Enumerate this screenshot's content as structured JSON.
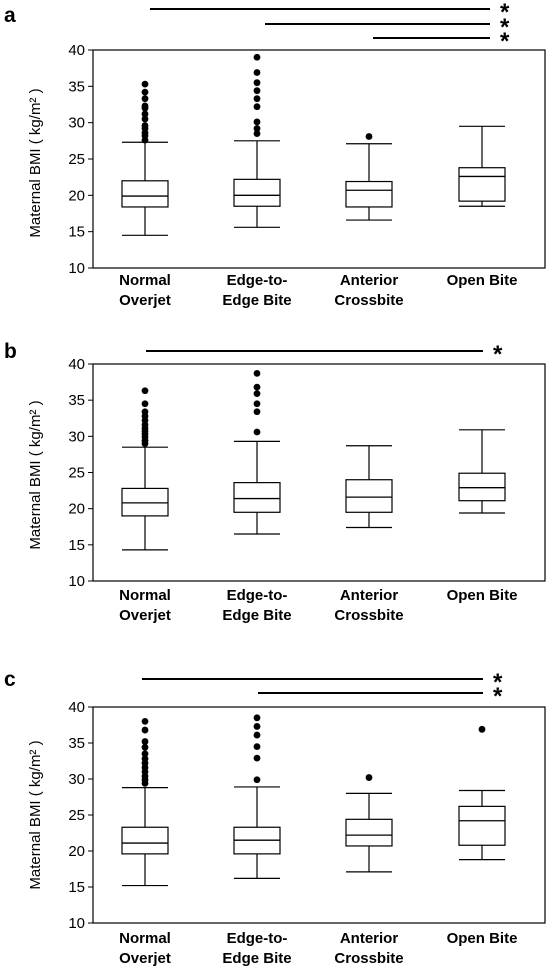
{
  "chart_data": [
    {
      "type": "box",
      "panel_label": "a",
      "ylabel": "Maternal BMI ( kg/m² )",
      "ylim": [
        10,
        40
      ],
      "yticks": [
        10,
        15,
        20,
        25,
        30,
        35,
        40
      ],
      "categories": [
        [
          "Normal",
          "Overjet"
        ],
        [
          "Edge-to-",
          "Edge Bite"
        ],
        [
          "Anterior",
          "Crossbite"
        ],
        [
          "Open Bite"
        ]
      ],
      "boxes": [
        {
          "whisker_low": 14.5,
          "q1": 18.4,
          "median": 19.9,
          "q3": 22.0,
          "whisker_high": 27.3,
          "outliers": [
            27.6,
            28.2,
            28.6,
            29.2,
            29.6,
            30.5,
            31.2,
            32.0,
            32.3,
            33.3,
            34.2,
            35.3
          ]
        },
        {
          "whisker_low": 15.6,
          "q1": 18.5,
          "median": 20.0,
          "q3": 22.2,
          "whisker_high": 27.5,
          "outliers": [
            28.5,
            29.2,
            30.1,
            32.2,
            33.3,
            34.4,
            35.5,
            36.9,
            39.0
          ]
        },
        {
          "whisker_low": 16.6,
          "q1": 18.4,
          "median": 20.7,
          "q3": 21.9,
          "whisker_high": 27.1,
          "outliers": [
            28.1
          ]
        },
        {
          "whisker_low": 18.5,
          "q1": 19.2,
          "median": 22.6,
          "q3": 23.8,
          "whisker_high": 29.5,
          "outliers": []
        }
      ],
      "significance": [
        {
          "from": 0,
          "to": 3,
          "label": "*"
        },
        {
          "from": 1,
          "to": 3,
          "label": "*"
        },
        {
          "from": 2,
          "to": 3,
          "label": "*"
        }
      ]
    },
    {
      "type": "box",
      "panel_label": "b",
      "ylabel": "Maternal BMI ( kg/m² )",
      "ylim": [
        10,
        40
      ],
      "yticks": [
        10,
        15,
        20,
        25,
        30,
        35,
        40
      ],
      "categories": [
        [
          "Normal",
          "Overjet"
        ],
        [
          "Edge-to-",
          "Edge Bite"
        ],
        [
          "Anterior",
          "Crossbite"
        ],
        [
          "Open Bite"
        ]
      ],
      "boxes": [
        {
          "whisker_low": 14.3,
          "q1": 19.0,
          "median": 20.8,
          "q3": 22.8,
          "whisker_high": 28.5,
          "outliers": [
            29.0,
            29.4,
            29.9,
            30.3,
            30.7,
            31.1,
            31.6,
            32.2,
            32.8,
            33.4,
            34.5,
            36.3
          ]
        },
        {
          "whisker_low": 16.5,
          "q1": 19.5,
          "median": 21.4,
          "q3": 23.6,
          "whisker_high": 29.3,
          "outliers": [
            30.6,
            33.4,
            34.5,
            35.9,
            36.8,
            38.7
          ]
        },
        {
          "whisker_low": 17.4,
          "q1": 19.5,
          "median": 21.6,
          "q3": 24.0,
          "whisker_high": 28.7,
          "outliers": []
        },
        {
          "whisker_low": 19.4,
          "q1": 21.1,
          "median": 22.9,
          "q3": 24.9,
          "whisker_high": 30.9,
          "outliers": []
        }
      ],
      "significance": [
        {
          "from": 0,
          "to": 3,
          "label": "*"
        }
      ]
    },
    {
      "type": "box",
      "panel_label": "c",
      "ylabel": "Maternal BMI ( kg/m² )",
      "ylim": [
        10,
        40
      ],
      "yticks": [
        10,
        15,
        20,
        25,
        30,
        35,
        40
      ],
      "categories": [
        [
          "Normal",
          "Overjet"
        ],
        [
          "Edge-to-",
          "Edge Bite"
        ],
        [
          "Anterior",
          "Crossbite"
        ],
        [
          "Open Bite"
        ]
      ],
      "boxes": [
        {
          "whisker_low": 15.2,
          "q1": 19.6,
          "median": 21.1,
          "q3": 23.3,
          "whisker_high": 28.8,
          "outliers": [
            29.4,
            29.9,
            30.4,
            31.0,
            31.6,
            32.2,
            32.8,
            33.5,
            34.4,
            35.2,
            36.8,
            38.0
          ]
        },
        {
          "whisker_low": 16.2,
          "q1": 19.6,
          "median": 21.5,
          "q3": 23.3,
          "whisker_high": 28.9,
          "outliers": [
            29.9,
            32.9,
            34.5,
            36.1,
            37.3,
            38.5
          ]
        },
        {
          "whisker_low": 17.1,
          "q1": 20.7,
          "median": 22.2,
          "q3": 24.4,
          "whisker_high": 28.0,
          "outliers": [
            30.2
          ]
        },
        {
          "whisker_low": 18.8,
          "q1": 20.8,
          "median": 24.2,
          "q3": 26.2,
          "whisker_high": 28.4,
          "outliers": [
            36.9
          ]
        }
      ],
      "significance": [
        {
          "from": 0,
          "to": 3,
          "label": "*"
        },
        {
          "from": 1,
          "to": 3,
          "label": "*"
        }
      ]
    }
  ]
}
